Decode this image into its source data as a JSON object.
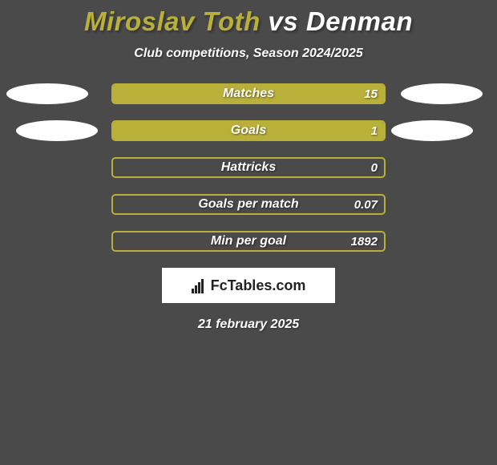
{
  "background_color": "#4a4a4a",
  "title": {
    "player1": "Miroslav Toth",
    "vs": " vs ",
    "player2": "Denman",
    "player1_color": "#b9b03a",
    "vs_color": "#ffffff",
    "player2_color": "#ffffff"
  },
  "subtitle": "Club competitions, Season 2024/2025",
  "player1_color": "#b9b03a",
  "player2_color": "#ffffff",
  "border_color": "#b9b03a",
  "stats": [
    {
      "label": "Matches",
      "value_left": "",
      "value_right": "15",
      "fill_left_pct": 0,
      "fill_right_pct": 100,
      "fill_left_color": "#ffffff",
      "fill_right_color": "#b9b03a",
      "show_ellipse_left": true,
      "show_ellipse_right": true
    },
    {
      "label": "Goals",
      "value_left": "",
      "value_right": "1",
      "fill_left_pct": 0,
      "fill_right_pct": 100,
      "fill_left_color": "#ffffff",
      "fill_right_color": "#b9b03a",
      "show_ellipse_left": true,
      "show_ellipse_right": true
    },
    {
      "label": "Hattricks",
      "value_left": "",
      "value_right": "0",
      "fill_left_pct": 0,
      "fill_right_pct": 0,
      "fill_left_color": "#ffffff",
      "fill_right_color": "#b9b03a",
      "show_ellipse_left": false,
      "show_ellipse_right": false
    },
    {
      "label": "Goals per match",
      "value_left": "",
      "value_right": "0.07",
      "fill_left_pct": 0,
      "fill_right_pct": 0,
      "fill_left_color": "#ffffff",
      "fill_right_color": "#b9b03a",
      "show_ellipse_left": false,
      "show_ellipse_right": false
    },
    {
      "label": "Min per goal",
      "value_left": "",
      "value_right": "1892",
      "fill_left_pct": 0,
      "fill_right_pct": 0,
      "fill_left_color": "#ffffff",
      "fill_right_color": "#b9b03a",
      "show_ellipse_left": false,
      "show_ellipse_right": false
    }
  ],
  "brand": "FcTables.com",
  "date": "21 february 2025",
  "ellipse_offsets": [
    {
      "left_extra": 0,
      "right_extra": 0
    },
    {
      "left_extra": 12,
      "right_extra": 12
    }
  ]
}
